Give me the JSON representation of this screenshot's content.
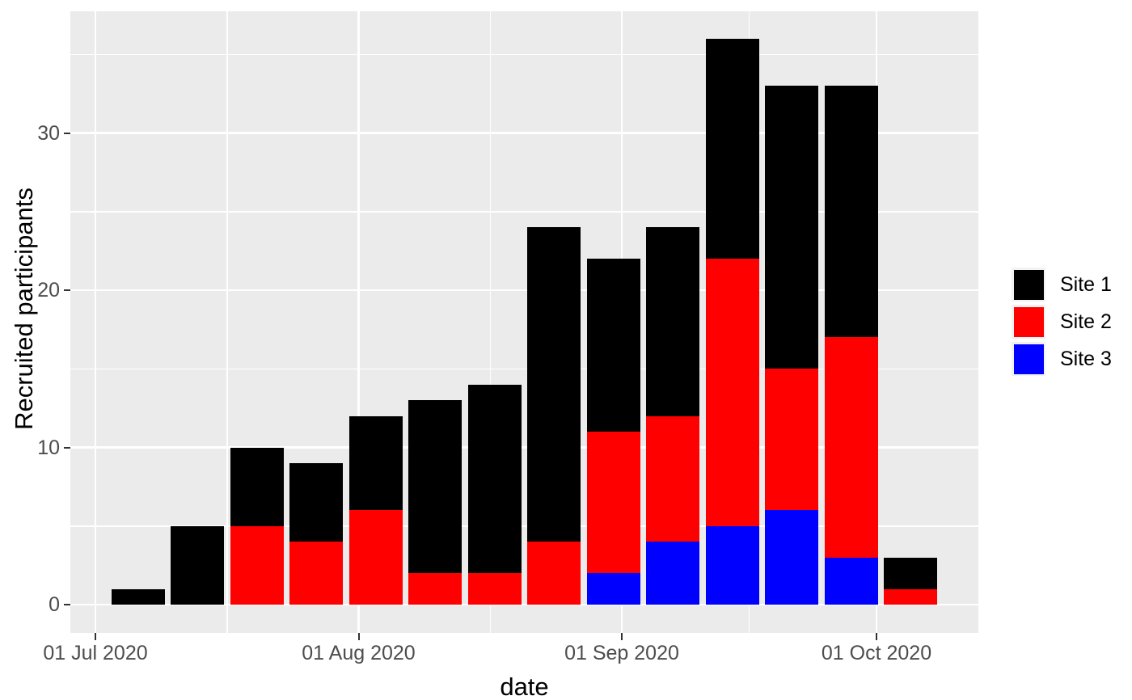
{
  "chart_data": {
    "type": "bar",
    "stacked": true,
    "title": "",
    "xlabel": "date",
    "ylabel": "Recruited participants",
    "categories": [
      "2020-07-06",
      "2020-07-13",
      "2020-07-20",
      "2020-07-27",
      "2020-08-03",
      "2020-08-10",
      "2020-08-17",
      "2020-08-24",
      "2020-08-31",
      "2020-09-07",
      "2020-09-14",
      "2020-09-21",
      "2020-09-28",
      "2020-10-05"
    ],
    "series": [
      {
        "name": "Site 1",
        "color": "#000000",
        "values": [
          1,
          5,
          5,
          5,
          6,
          11,
          12,
          20,
          11,
          12,
          14,
          18,
          16,
          2
        ]
      },
      {
        "name": "Site 2",
        "color": "#FF0000",
        "values": [
          0,
          0,
          5,
          4,
          6,
          2,
          2,
          4,
          9,
          8,
          17,
          9,
          14,
          1
        ]
      },
      {
        "name": "Site 3",
        "color": "#0000FF",
        "values": [
          0,
          0,
          0,
          0,
          0,
          0,
          0,
          0,
          2,
          4,
          5,
          6,
          3,
          0
        ]
      }
    ],
    "stack_order_bottom_to_top": [
      "Site 3",
      "Site 2",
      "Site 1"
    ],
    "totals": [
      1,
      5,
      10,
      9,
      12,
      13,
      14,
      24,
      22,
      24,
      36,
      33,
      33,
      3
    ],
    "x_axis": {
      "title": "date",
      "major_ticks": [
        {
          "date": "2020-07-01",
          "label": "01 Jul 2020"
        },
        {
          "date": "2020-08-01",
          "label": "01 Aug 2020"
        },
        {
          "date": "2020-09-01",
          "label": "01 Sep 2020"
        },
        {
          "date": "2020-10-01",
          "label": "01 Oct 2020"
        }
      ],
      "minor_day_offsets": [
        15.5,
        46.5,
        77
      ]
    },
    "y_axis": {
      "title": "Recruited participants",
      "major_ticks": [
        {
          "value": 0,
          "label": "0"
        },
        {
          "value": 10,
          "label": "10"
        },
        {
          "value": 20,
          "label": "20"
        },
        {
          "value": 30,
          "label": "30"
        }
      ],
      "minor_breaks": [
        5,
        15,
        25,
        35
      ],
      "ylim": [
        -1.8,
        37.8
      ]
    },
    "legend": {
      "position": "right",
      "entries": [
        {
          "label": "Site 1",
          "color": "#000000"
        },
        {
          "label": "Site 2",
          "color": "#FF0000"
        },
        {
          "label": "Site 3",
          "color": "#0000FF"
        }
      ]
    },
    "colors": {
      "page_background": "#FFFFFF",
      "panel_background": "#EBEBEB",
      "grid": "#FFFFFF",
      "tick_mark": "#333333",
      "tick_label": "#4D4D4D",
      "axis_title": "#000000",
      "legend_label": "#000000",
      "legend_key_background": "#F2F2F2"
    }
  }
}
